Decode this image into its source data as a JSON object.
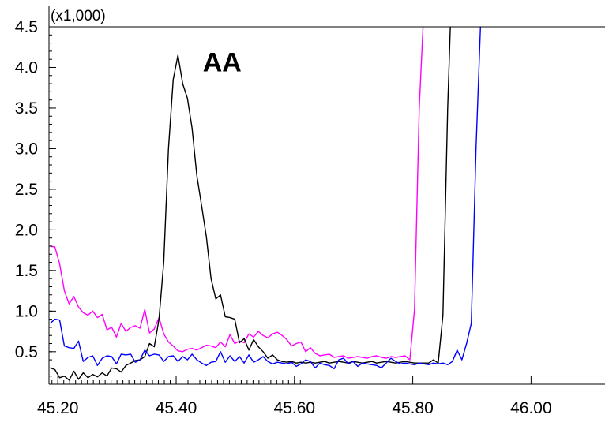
{
  "chart_data": {
    "type": "line",
    "title": "",
    "xlabel": "",
    "ylabel": "",
    "y_multiplier_label": "(x1,000)",
    "xlim": [
      45.185,
      46.125
    ],
    "ylim": [
      0.1,
      4.5
    ],
    "x_ticks": [
      45.2,
      45.4,
      45.6,
      45.8,
      46.0
    ],
    "x_tick_labels": [
      "45.20",
      "45.40",
      "45.60",
      "45.80",
      "46.00"
    ],
    "y_ticks": [
      0.5,
      1.0,
      1.5,
      2.0,
      2.5,
      3.0,
      3.5,
      4.0,
      4.5
    ],
    "y_tick_labels": [
      "0.5",
      "1.0",
      "1.5",
      "2.0",
      "2.5",
      "3.0",
      "3.5",
      "4.0",
      "4.5"
    ],
    "grid": false,
    "annotations": [
      {
        "text": "AA",
        "x": 45.445,
        "y": 3.95
      }
    ],
    "series": [
      {
        "color": "#ff00ff",
        "x": [
          45.187,
          45.195,
          45.203,
          45.211,
          45.219,
          45.227,
          45.235,
          45.243,
          45.251,
          45.259,
          45.267,
          45.275,
          45.283,
          45.291,
          45.299,
          45.307,
          45.315,
          45.323,
          45.331,
          45.339,
          45.347,
          45.355,
          45.363,
          45.371,
          45.379,
          45.387,
          45.395,
          45.403,
          45.411,
          45.419,
          45.427,
          45.435,
          45.443,
          45.451,
          45.459,
          45.467,
          45.475,
          45.483,
          45.491,
          45.499,
          45.507,
          45.515,
          45.523,
          45.531,
          45.539,
          45.547,
          45.555,
          45.563,
          45.571,
          45.579,
          45.587,
          45.595,
          45.603,
          45.611,
          45.619,
          45.627,
          45.635,
          45.643,
          45.651,
          45.659,
          45.667,
          45.675,
          45.683,
          45.691,
          45.699,
          45.707,
          45.715,
          45.723,
          45.731,
          45.739,
          45.747,
          45.755,
          45.763,
          45.771,
          45.779,
          45.787,
          45.795,
          45.803,
          45.811,
          45.818
        ],
        "y": [
          1.8,
          1.79,
          1.58,
          1.25,
          1.09,
          1.18,
          1.05,
          0.98,
          0.95,
          1.0,
          0.92,
          0.96,
          0.77,
          0.8,
          0.68,
          0.85,
          0.75,
          0.8,
          0.82,
          0.79,
          1.02,
          0.73,
          0.78,
          0.92,
          0.72,
          0.62,
          0.57,
          0.51,
          0.5,
          0.53,
          0.54,
          0.52,
          0.55,
          0.58,
          0.57,
          0.55,
          0.62,
          0.56,
          0.71,
          0.6,
          0.63,
          0.61,
          0.72,
          0.68,
          0.75,
          0.7,
          0.67,
          0.72,
          0.74,
          0.7,
          0.65,
          0.57,
          0.6,
          0.62,
          0.5,
          0.55,
          0.48,
          0.45,
          0.46,
          0.47,
          0.43,
          0.44,
          0.45,
          0.42,
          0.43,
          0.44,
          0.43,
          0.42,
          0.44,
          0.45,
          0.43,
          0.42,
          0.44,
          0.43,
          0.44,
          0.45,
          0.4,
          1.02,
          3.5,
          4.6
        ]
      },
      {
        "color": "#000000",
        "x": [
          45.187,
          45.195,
          45.203,
          45.211,
          45.219,
          45.227,
          45.235,
          45.243,
          45.251,
          45.259,
          45.267,
          45.275,
          45.283,
          45.291,
          45.299,
          45.307,
          45.315,
          45.323,
          45.331,
          45.339,
          45.347,
          45.355,
          45.363,
          45.371,
          45.379,
          45.387,
          45.395,
          45.403,
          45.411,
          45.419,
          45.427,
          45.435,
          45.443,
          45.451,
          45.459,
          45.467,
          45.475,
          45.483,
          45.491,
          45.499,
          45.507,
          45.515,
          45.523,
          45.531,
          45.539,
          45.547,
          45.555,
          45.563,
          45.571,
          45.579,
          45.587,
          45.595,
          45.603,
          45.611,
          45.619,
          45.627,
          45.635,
          45.643,
          45.651,
          45.659,
          45.667,
          45.675,
          45.683,
          45.691,
          45.699,
          45.707,
          45.715,
          45.723,
          45.731,
          45.739,
          45.747,
          45.755,
          45.763,
          45.771,
          45.779,
          45.787,
          45.795,
          45.803,
          45.811,
          45.819,
          45.827,
          45.835,
          45.843,
          45.851,
          45.859,
          45.864
        ],
        "y": [
          0.3,
          0.28,
          0.18,
          0.2,
          0.15,
          0.26,
          0.16,
          0.24,
          0.18,
          0.22,
          0.19,
          0.24,
          0.2,
          0.3,
          0.29,
          0.25,
          0.33,
          0.36,
          0.39,
          0.4,
          0.44,
          0.6,
          0.56,
          0.9,
          1.6,
          3.0,
          3.85,
          4.15,
          3.8,
          3.62,
          3.25,
          2.67,
          2.3,
          1.92,
          1.4,
          1.15,
          1.2,
          0.93,
          0.92,
          0.9,
          0.61,
          0.66,
          0.52,
          0.65,
          0.56,
          0.5,
          0.42,
          0.46,
          0.4,
          0.38,
          0.37,
          0.38,
          0.36,
          0.37,
          0.36,
          0.37,
          0.36,
          0.37,
          0.38,
          0.36,
          0.37,
          0.38,
          0.37,
          0.36,
          0.38,
          0.37,
          0.36,
          0.37,
          0.38,
          0.36,
          0.37,
          0.38,
          0.37,
          0.36,
          0.37,
          0.38,
          0.37,
          0.36,
          0.36,
          0.36,
          0.36,
          0.4,
          0.36,
          0.95,
          3.5,
          4.6
        ]
      },
      {
        "color": "#0000ff",
        "x": [
          45.187,
          45.195,
          45.203,
          45.211,
          45.219,
          45.227,
          45.235,
          45.243,
          45.251,
          45.259,
          45.267,
          45.275,
          45.283,
          45.291,
          45.299,
          45.307,
          45.315,
          45.323,
          45.331,
          45.339,
          45.347,
          45.355,
          45.363,
          45.371,
          45.379,
          45.387,
          45.395,
          45.403,
          45.411,
          45.419,
          45.427,
          45.435,
          45.443,
          45.451,
          45.459,
          45.467,
          45.475,
          45.483,
          45.491,
          45.499,
          45.507,
          45.515,
          45.523,
          45.531,
          45.539,
          45.547,
          45.555,
          45.563,
          45.571,
          45.579,
          45.587,
          45.595,
          45.603,
          45.611,
          45.619,
          45.627,
          45.635,
          45.643,
          45.651,
          45.659,
          45.667,
          45.675,
          45.683,
          45.691,
          45.699,
          45.707,
          45.715,
          45.723,
          45.731,
          45.739,
          45.747,
          45.755,
          45.763,
          45.771,
          45.779,
          45.787,
          45.795,
          45.803,
          45.811,
          45.819,
          45.827,
          45.835,
          45.843,
          45.851,
          45.859,
          45.867,
          45.875,
          45.883,
          45.891,
          45.899,
          45.907,
          45.915,
          45.92
        ],
        "y": [
          0.85,
          0.9,
          0.89,
          0.57,
          0.55,
          0.54,
          0.63,
          0.38,
          0.43,
          0.45,
          0.33,
          0.42,
          0.45,
          0.44,
          0.35,
          0.47,
          0.46,
          0.47,
          0.37,
          0.4,
          0.52,
          0.45,
          0.47,
          0.46,
          0.38,
          0.44,
          0.45,
          0.38,
          0.44,
          0.4,
          0.47,
          0.4,
          0.36,
          0.33,
          0.37,
          0.38,
          0.5,
          0.37,
          0.45,
          0.38,
          0.44,
          0.36,
          0.46,
          0.37,
          0.4,
          0.44,
          0.38,
          0.35,
          0.37,
          0.36,
          0.35,
          0.37,
          0.32,
          0.35,
          0.4,
          0.38,
          0.3,
          0.36,
          0.34,
          0.33,
          0.29,
          0.4,
          0.42,
          0.35,
          0.38,
          0.32,
          0.36,
          0.35,
          0.34,
          0.33,
          0.3,
          0.36,
          0.42,
          0.38,
          0.35,
          0.36,
          0.35,
          0.34,
          0.36,
          0.35,
          0.34,
          0.36,
          0.35,
          0.36,
          0.34,
          0.38,
          0.52,
          0.4,
          0.6,
          0.85,
          3.0,
          4.6,
          4.6
        ]
      }
    ]
  }
}
